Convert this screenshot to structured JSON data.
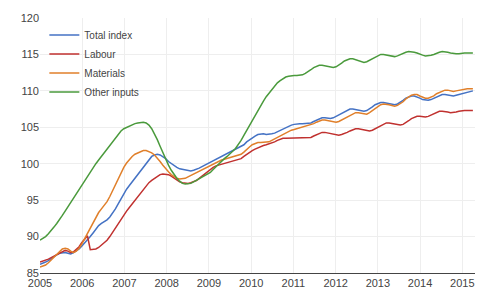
{
  "chart_data": {
    "type": "line",
    "x": [
      2005,
      2005.0661,
      2005.1323,
      2005.1984,
      2005.2645,
      2005.3306,
      2005.3968,
      2005.4629,
      2005.529,
      2005.5952,
      2005.6613,
      2005.7274,
      2005.7935,
      2005.8597,
      2005.9258,
      2005.9919,
      2006.0581,
      2006.1242,
      2006.1903,
      2006.2565,
      2006.3226,
      2006.3887,
      2006.4548,
      2006.521,
      2006.5871,
      2006.6532,
      2006.7194,
      2006.7855,
      2006.8516,
      2006.9177,
      2006.9839,
      2007.05,
      2007.1161,
      2007.1823,
      2007.2484,
      2007.3145,
      2007.3806,
      2007.4468,
      2007.5129,
      2007.579,
      2007.6452,
      2007.7113,
      2007.7774,
      2007.8435,
      2007.9097,
      2007.9758,
      2008.0419,
      2008.1081,
      2008.1742,
      2008.2403,
      2008.3065,
      2008.3726,
      2008.4387,
      2008.5048,
      2008.571,
      2008.6371,
      2008.7032,
      2008.7694,
      2008.8355,
      2008.9016,
      2008.9677,
      2009.0339,
      2009.1,
      2009.1661,
      2009.2323,
      2009.2984,
      2009.3645,
      2009.4306,
      2009.4968,
      2009.5629,
      2009.629,
      2009.6952,
      2009.7613,
      2009.8274,
      2009.8935,
      2009.9597,
      2010.0258,
      2010.0919,
      2010.1581,
      2010.2242,
      2010.2903,
      2010.3565,
      2010.4226,
      2010.4887,
      2010.5548,
      2010.621,
      2010.6871,
      2010.7532,
      2010.8194,
      2010.8855,
      2010.9516,
      2011.0177,
      2011.0839,
      2011.15,
      2011.2161,
      2011.2823,
      2011.3484,
      2011.4145,
      2011.4806,
      2011.5468,
      2011.6129,
      2011.679,
      2011.7452,
      2011.8113,
      2011.8774,
      2011.9435,
      2012.0097,
      2012.0758,
      2012.1419,
      2012.2081,
      2012.2742,
      2012.3403,
      2012.4065,
      2012.4726,
      2012.5387,
      2012.6048,
      2012.671,
      2012.7371,
      2012.8032,
      2012.8694,
      2012.9355,
      2013.0016,
      2013.0677,
      2013.1339,
      2013.2,
      2013.2661,
      2013.3323,
      2013.3984,
      2013.4645,
      2013.5306,
      2013.5968,
      2013.6629,
      2013.729,
      2013.7952,
      2013.8613,
      2013.9274,
      2013.9935,
      2014.0597,
      2014.1258,
      2014.1919,
      2014.2581,
      2014.3242,
      2014.3903,
      2014.4565,
      2014.5226,
      2014.5887,
      2014.6548,
      2014.721,
      2014.7871,
      2014.8532,
      2014.9194,
      2014.9855,
      2015.0516,
      2015.1177,
      2015.1839,
      2015.25
    ],
    "series": [
      {
        "name": "Total index",
        "color": "#4472c4",
        "values": [
          86.2,
          86.3,
          86.5,
          86.7,
          87.0,
          87.2,
          87.5,
          87.7,
          87.8,
          87.8,
          87.7,
          87.6,
          87.8,
          88.0,
          88.3,
          88.7,
          89.1,
          89.5,
          90.0,
          90.5,
          91.0,
          91.5,
          91.8,
          92.0,
          92.3,
          92.7,
          93.2,
          93.8,
          94.5,
          95.2,
          95.9,
          96.5,
          97.0,
          97.5,
          98.0,
          98.5,
          99.0,
          99.5,
          100.0,
          100.5,
          101.0,
          101.2,
          101.3,
          101.2,
          101.0,
          100.7,
          100.3,
          100.0,
          99.7,
          99.5,
          99.3,
          99.2,
          99.1,
          99.0,
          99.0,
          99.1,
          99.2,
          99.4,
          99.6,
          99.8,
          100.0,
          100.2,
          100.4,
          100.5,
          100.7,
          100.9,
          101.1,
          101.3,
          101.5,
          101.7,
          101.9,
          102.1,
          102.3,
          102.6,
          103.0,
          103.3,
          103.6,
          103.8,
          104.0,
          104.1,
          104.1,
          104.0,
          104.0,
          104.1,
          104.2,
          104.4,
          104.6,
          104.8,
          105.0,
          105.2,
          105.3,
          105.4,
          105.5,
          105.5,
          105.5,
          105.5,
          105.5,
          105.6,
          105.8,
          106.0,
          106.2,
          106.3,
          106.3,
          106.2,
          106.2,
          106.3,
          106.5,
          106.7,
          107.0,
          107.2,
          107.4,
          107.5,
          107.5,
          107.4,
          107.3,
          107.2,
          107.2,
          107.3,
          107.5,
          107.8,
          108.1,
          108.3,
          108.4,
          108.4,
          108.3,
          108.2,
          108.1,
          108.1,
          108.2,
          108.4,
          108.7,
          109.0,
          109.2,
          109.3,
          109.3,
          109.2,
          109.0,
          108.8,
          108.7,
          108.7,
          108.8,
          109.0,
          109.2,
          109.4,
          109.5,
          109.5,
          109.4,
          109.3,
          109.3,
          109.4,
          109.5,
          109.7,
          109.8,
          109.9,
          110.0,
          110.0
        ]
      },
      {
        "name": "Labour",
        "color": "#c0312f",
        "values": [
          86.5,
          86.6,
          86.7,
          86.9,
          87.1,
          87.3,
          87.6,
          87.8,
          88.0,
          88.1,
          88.0,
          87.8,
          87.9,
          88.2,
          88.6,
          89.2,
          89.7,
          90.1,
          88.2,
          88.2,
          88.3,
          88.5,
          88.8,
          89.1,
          89.5,
          90.0,
          90.6,
          91.2,
          91.8,
          92.4,
          93.0,
          93.5,
          94.0,
          94.5,
          95.0,
          95.5,
          96.0,
          96.5,
          97.0,
          97.4,
          97.7,
          98.0,
          98.3,
          98.5,
          98.6,
          98.6,
          98.5,
          98.3,
          98.0,
          97.7,
          97.5,
          97.4,
          97.3,
          97.3,
          97.4,
          97.5,
          97.7,
          98.0,
          98.3,
          98.7,
          99.0,
          99.3,
          99.5,
          99.7,
          99.8,
          99.9,
          100.0,
          100.1,
          100.2,
          100.3,
          100.4,
          100.5,
          100.7,
          101.0,
          101.3,
          101.6,
          101.8,
          102.0,
          102.2,
          102.4,
          102.5,
          102.6,
          102.7,
          102.8,
          103.0,
          103.2,
          103.4,
          103.5,
          103.5,
          103.5,
          103.5,
          103.5,
          103.5,
          103.5,
          103.5,
          103.5,
          103.5,
          103.6,
          103.8,
          104.0,
          104.2,
          104.3,
          104.3,
          104.2,
          104.1,
          104.0,
          103.9,
          103.9,
          104.0,
          104.1,
          104.3,
          104.5,
          104.7,
          104.8,
          104.8,
          104.7,
          104.6,
          104.5,
          104.5,
          104.6,
          104.8,
          105.0,
          105.3,
          105.5,
          105.6,
          105.6,
          105.5,
          105.4,
          105.3,
          105.3,
          105.4,
          105.6,
          105.9,
          106.2,
          106.4,
          106.5,
          106.5,
          106.4,
          106.4,
          106.5,
          106.7,
          106.9,
          107.1,
          107.2,
          107.2,
          107.2,
          107.1,
          107.0,
          107.0,
          107.1,
          107.2,
          107.3,
          107.3,
          107.3,
          107.3,
          107.3
        ]
      },
      {
        "name": "Materials",
        "color": "#e07f2a",
        "values": [
          85.8,
          85.9,
          86.1,
          86.4,
          86.8,
          87.2,
          87.6,
          88.0,
          88.3,
          88.4,
          88.3,
          88.0,
          87.8,
          88.0,
          88.4,
          89.0,
          89.7,
          90.5,
          91.3,
          92.0,
          92.7,
          93.3,
          93.8,
          94.3,
          94.8,
          95.5,
          96.3,
          97.2,
          98.0,
          98.8,
          99.5,
          100.1,
          100.6,
          101.0,
          101.3,
          101.5,
          101.7,
          101.8,
          101.8,
          101.7,
          101.5,
          101.2,
          100.8,
          100.3,
          99.8,
          99.3,
          98.9,
          98.5,
          98.2,
          98.0,
          97.9,
          97.9,
          98.0,
          98.2,
          98.4,
          98.6,
          98.8,
          99.0,
          99.2,
          99.4,
          99.6,
          99.8,
          100.0,
          100.2,
          100.4,
          100.5,
          100.6,
          100.7,
          100.8,
          100.9,
          101.0,
          101.1,
          101.3,
          101.6,
          102.0,
          102.3,
          102.6,
          102.8,
          102.9,
          102.9,
          102.9,
          102.9,
          103.0,
          103.2,
          103.4,
          103.6,
          103.9,
          104.1,
          104.3,
          104.5,
          104.6,
          104.7,
          104.8,
          104.9,
          105.0,
          105.1,
          105.2,
          105.3,
          105.5,
          105.7,
          105.9,
          106.0,
          106.0,
          105.9,
          105.8,
          105.7,
          105.7,
          105.8,
          106.0,
          106.2,
          106.5,
          106.7,
          106.9,
          107.0,
          107.0,
          106.9,
          106.8,
          106.8,
          107.0,
          107.3,
          107.6,
          107.9,
          108.1,
          108.2,
          108.2,
          108.1,
          108.0,
          107.9,
          108.0,
          108.2,
          108.5,
          108.9,
          109.2,
          109.4,
          109.5,
          109.5,
          109.3,
          109.1,
          109.0,
          109.0,
          109.1,
          109.3,
          109.6,
          109.8,
          110.0,
          110.1,
          110.1,
          110.0,
          109.9,
          110.0,
          110.1,
          110.2,
          110.3,
          110.3,
          110.3,
          110.3
        ]
      },
      {
        "name": "Other inputs",
        "color": "#4a9a3c",
        "values": [
          89.5,
          89.7,
          90.0,
          90.4,
          90.8,
          91.3,
          91.8,
          92.3,
          92.9,
          93.5,
          94.1,
          94.7,
          95.3,
          95.9,
          96.5,
          97.1,
          97.7,
          98.3,
          98.9,
          99.5,
          100.0,
          100.5,
          101.0,
          101.5,
          102.0,
          102.5,
          103.0,
          103.5,
          104.0,
          104.5,
          104.8,
          105.0,
          105.2,
          105.4,
          105.5,
          105.6,
          105.7,
          105.7,
          105.6,
          105.3,
          104.8,
          104.1,
          103.3,
          102.4,
          101.5,
          100.6,
          99.8,
          99.1,
          98.5,
          98.0,
          97.6,
          97.3,
          97.2,
          97.2,
          97.3,
          97.5,
          97.7,
          97.9,
          98.1,
          98.3,
          98.5,
          98.8,
          99.2,
          99.6,
          100.0,
          100.4,
          100.7,
          101.0,
          101.3,
          101.7,
          102.1,
          102.6,
          103.2,
          103.9,
          104.6,
          105.3,
          106.0,
          106.7,
          107.4,
          108.0,
          108.6,
          109.2,
          109.7,
          110.2,
          110.7,
          111.1,
          111.4,
          111.7,
          111.9,
          112.0,
          112.1,
          112.1,
          112.1,
          112.1,
          112.2,
          112.4,
          112.6,
          112.9,
          113.2,
          113.4,
          113.5,
          113.5,
          113.4,
          113.3,
          113.2,
          113.2,
          113.3,
          113.5,
          113.8,
          114.1,
          114.3,
          114.4,
          114.4,
          114.3,
          114.1,
          114.0,
          113.9,
          114.0,
          114.2,
          114.5,
          114.7,
          114.9,
          115.0,
          115.0,
          114.9,
          114.8,
          114.7,
          114.7,
          114.8,
          115.0,
          115.2,
          115.3,
          115.4,
          115.4,
          115.3,
          115.2,
          115.0,
          114.9,
          114.8,
          114.8,
          114.9,
          115.0,
          115.2,
          115.3,
          115.4,
          115.4,
          115.3,
          115.2,
          115.1,
          115.1,
          115.1,
          115.2,
          115.2,
          115.2,
          115.2,
          115.2
        ]
      }
    ],
    "xlim": [
      2005.0,
      2015.3
    ],
    "ylim": [
      85,
      120
    ],
    "xticks": [
      2005,
      2006,
      2007,
      2008,
      2009,
      2010,
      2011,
      2012,
      2013,
      2014,
      2015
    ],
    "yticks": [
      85,
      90,
      95,
      100,
      105,
      110,
      115,
      120
    ],
    "grid": true,
    "legend": "upper left"
  }
}
